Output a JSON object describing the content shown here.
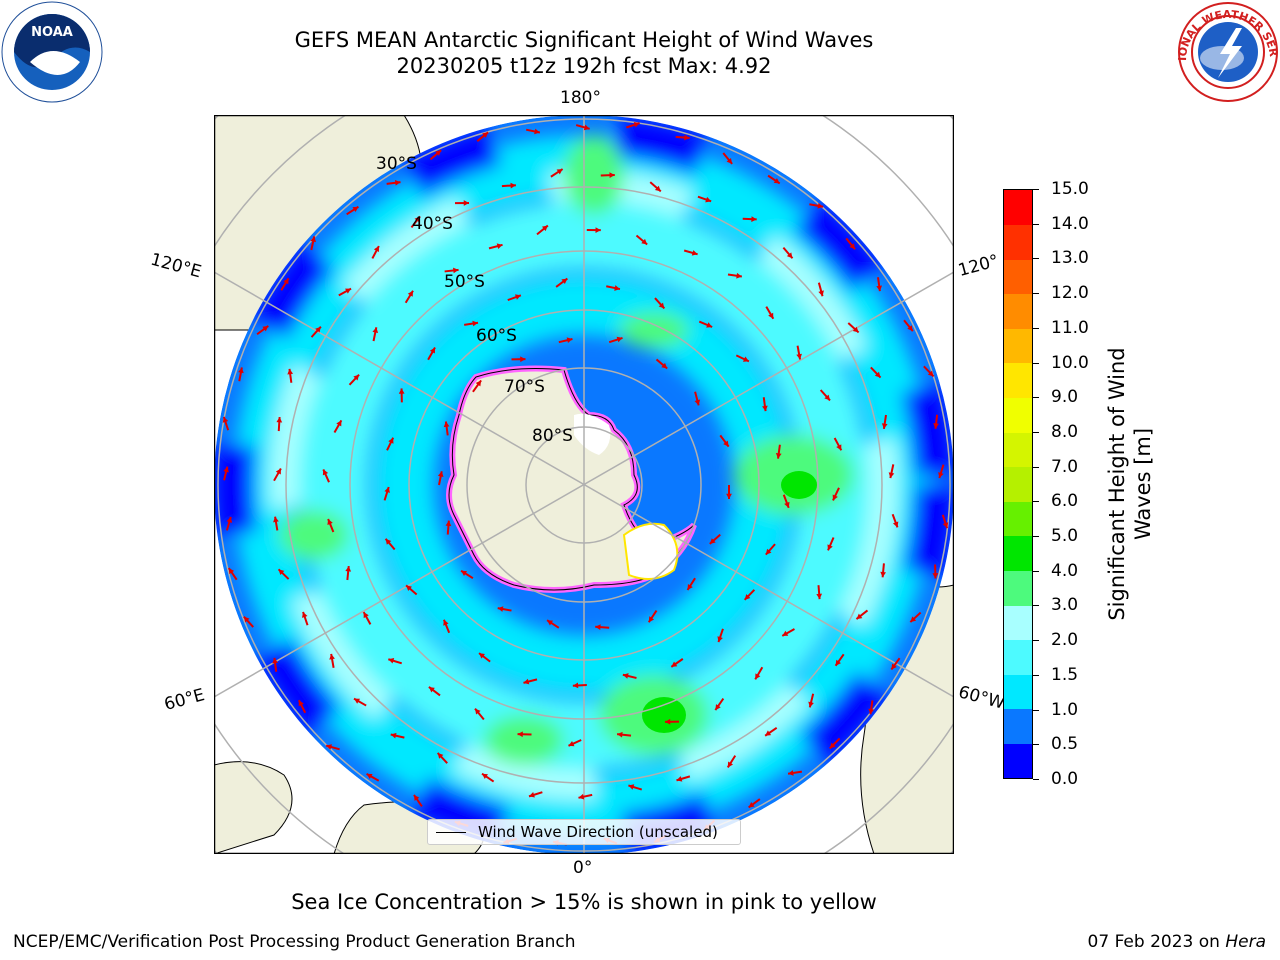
{
  "header": {
    "title_line1": "GEFS MEAN Antarctic Significant Height of Wind Waves",
    "title_line2": "20230205 t12z 192h fcst   Max: 4.92"
  },
  "map": {
    "projection": "south-polar-stereographic",
    "longitude_labels": [
      "180°",
      "120°E",
      "120°",
      "60°E",
      "60°W",
      "0°"
    ],
    "latitude_labels": [
      "30°S",
      "40°S",
      "50°S",
      "60°S",
      "70°S",
      "80°S"
    ],
    "colors": {
      "land": "#efefdb",
      "sea_ice": "#ff66ff",
      "arrow": "#e00000",
      "grid": "#b0b0b0"
    }
  },
  "legend": {
    "label": "Wind Wave Direction (unscaled)"
  },
  "colorbar": {
    "label": "Significant Height of Wind Waves [m]",
    "label_line1": "Significant Height of Wind",
    "label_line2": "Waves [m]",
    "ticks": [
      "0.0",
      "0.5",
      "1.0",
      "1.5",
      "2.0",
      "3.0",
      "4.0",
      "5.0",
      "6.0",
      "7.0",
      "8.0",
      "9.0",
      "10.0",
      "11.0",
      "12.0",
      "13.0",
      "14.0",
      "15.0"
    ],
    "colors": [
      "#0000ff",
      "#0a78ff",
      "#00e8ff",
      "#4dfaff",
      "#a8ffff",
      "#4dfa7d",
      "#00e600",
      "#66f000",
      "#b5f000",
      "#d4f500",
      "#f0ff00",
      "#ffe600",
      "#ffb800",
      "#ff8c00",
      "#ff5f00",
      "#ff3000",
      "#ff0000"
    ]
  },
  "notes": {
    "sea_ice": "Sea Ice Concentration > 15% is shown in pink to yellow"
  },
  "footer": {
    "left": "NCEP/EMC/Verification Post Processing Product Generation Branch",
    "date": "07 Feb 2023 on ",
    "machine": "Hera"
  },
  "logos": {
    "noaa_text": "NOAA",
    "nws_text": "NATIONAL WEATHER SERVICE"
  }
}
